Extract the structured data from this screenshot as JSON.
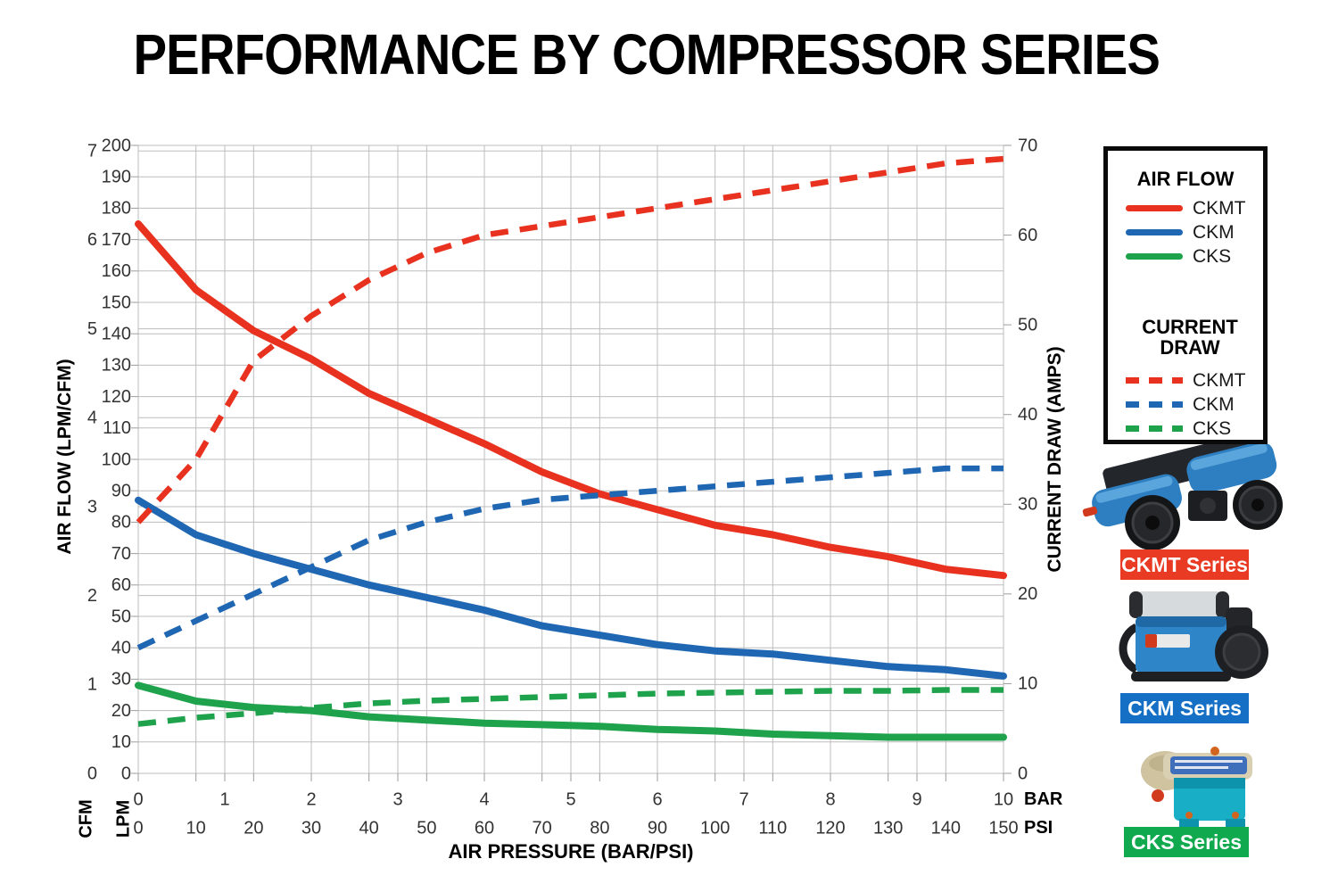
{
  "title": "PERFORMANCE BY COMPRESSOR SERIES",
  "axes": {
    "left": {
      "title": "AIR FLOW (LPM/CFM)",
      "cfm_unit": "CFM",
      "lpm_unit": "LPM",
      "lpm_ticks": [
        0,
        10,
        20,
        30,
        40,
        50,
        60,
        70,
        80,
        90,
        100,
        110,
        120,
        130,
        140,
        150,
        160,
        170,
        180,
        190,
        200
      ],
      "cfm_ticks": [
        0,
        1,
        2,
        3,
        4,
        5,
        6,
        7
      ],
      "lpm_per_cfm": 28.317
    },
    "right": {
      "title": "CURRENT DRAW (AMPS)",
      "ticks": [
        0,
        10,
        20,
        30,
        40,
        50,
        60,
        70
      ]
    },
    "bottom": {
      "title": "AIR PRESSURE (BAR/PSI)",
      "bar_unit": "BAR",
      "psi_unit": "PSI",
      "bar_ticks": [
        0,
        1,
        2,
        3,
        4,
        5,
        6,
        7,
        8,
        9,
        10
      ],
      "psi_ticks": [
        0,
        10,
        20,
        30,
        40,
        50,
        60,
        70,
        80,
        90,
        100,
        110,
        120,
        130,
        140,
        150
      ]
    }
  },
  "chart_data": {
    "type": "line",
    "title": "PERFORMANCE BY COMPRESSOR SERIES",
    "xlabel": "AIR PRESSURE (BAR/PSI)",
    "ylabel_left": "AIR FLOW (LPM/CFM)",
    "ylabel_right": "CURRENT DRAW (AMPS)",
    "x_psi": [
      0,
      10,
      20,
      30,
      40,
      50,
      60,
      70,
      80,
      90,
      100,
      110,
      120,
      130,
      140,
      150
    ],
    "xlim_psi": [
      0,
      150
    ],
    "xlim_bar": [
      0,
      10
    ],
    "flow_lim_lpm": [
      0,
      200
    ],
    "amps_lim": [
      0,
      70
    ],
    "grid": true,
    "legend_position": "right",
    "series": [
      {
        "name": "CKMT air flow",
        "group": "AIR FLOW",
        "label": "CKMT",
        "axis": "flow_lpm",
        "style": "solid",
        "color": "#e8311e",
        "values": [
          175,
          154,
          141,
          132,
          121,
          113,
          105,
          96,
          89,
          84,
          79,
          76,
          72,
          69,
          65,
          63
        ]
      },
      {
        "name": "CKM air flow",
        "group": "AIR FLOW",
        "label": "CKM",
        "axis": "flow_lpm",
        "style": "solid",
        "color": "#1f66b3",
        "values": [
          87,
          76,
          70,
          65,
          60,
          56,
          52,
          47,
          44,
          41,
          39,
          38,
          36,
          34,
          33,
          31
        ]
      },
      {
        "name": "CKS air flow",
        "group": "AIR FLOW",
        "label": "CKS",
        "axis": "flow_lpm",
        "style": "solid",
        "color": "#1fa24c",
        "values": [
          28,
          23,
          21,
          20,
          18,
          17,
          16,
          15.5,
          15,
          14,
          13.5,
          12.5,
          12,
          11.5,
          11.5,
          11.5
        ]
      },
      {
        "name": "CKMT current draw",
        "group": "CURRENT DRAW",
        "label": "CKMT",
        "axis": "amps",
        "style": "dashed",
        "color": "#e8311e",
        "values": [
          28,
          35,
          46,
          51,
          55,
          58,
          60,
          61,
          62,
          63,
          64,
          65,
          66,
          67,
          68,
          68.5
        ]
      },
      {
        "name": "CKM current draw",
        "group": "CURRENT DRAW",
        "label": "CKM",
        "axis": "amps",
        "style": "dashed",
        "color": "#1f66b3",
        "values": [
          14,
          17,
          20,
          23,
          26,
          28,
          29.5,
          30.5,
          31,
          31.5,
          32,
          32.5,
          33,
          33.5,
          34,
          34
        ]
      },
      {
        "name": "CKS current draw",
        "group": "CURRENT DRAW",
        "label": "CKS",
        "axis": "amps",
        "style": "dashed",
        "color": "#1fa24c",
        "values": [
          5.5,
          6.2,
          6.7,
          7.3,
          7.8,
          8.1,
          8.3,
          8.5,
          8.7,
          8.9,
          9,
          9.1,
          9.2,
          9.2,
          9.3,
          9.3
        ]
      }
    ]
  },
  "legend": {
    "airflow_title": "AIR FLOW",
    "current_title": "CURRENT DRAW",
    "entries": [
      {
        "label": "CKMT",
        "color": "#e8311e"
      },
      {
        "label": "CKM",
        "color": "#1f66b3"
      },
      {
        "label": "CKS",
        "color": "#1fa24c"
      }
    ]
  },
  "products": [
    {
      "label": "CKMT Series",
      "badge_color": "#e93a24"
    },
    {
      "label": "CKM Series",
      "badge_color": "#156fc5"
    },
    {
      "label": "CKS Series",
      "badge_color": "#10a94e"
    }
  ],
  "colors": {
    "ckmt": "#e8311e",
    "ckm": "#1f66b3",
    "cks": "#1fa24c",
    "grid": "#bdbdbd",
    "tick_text": "#333333"
  }
}
